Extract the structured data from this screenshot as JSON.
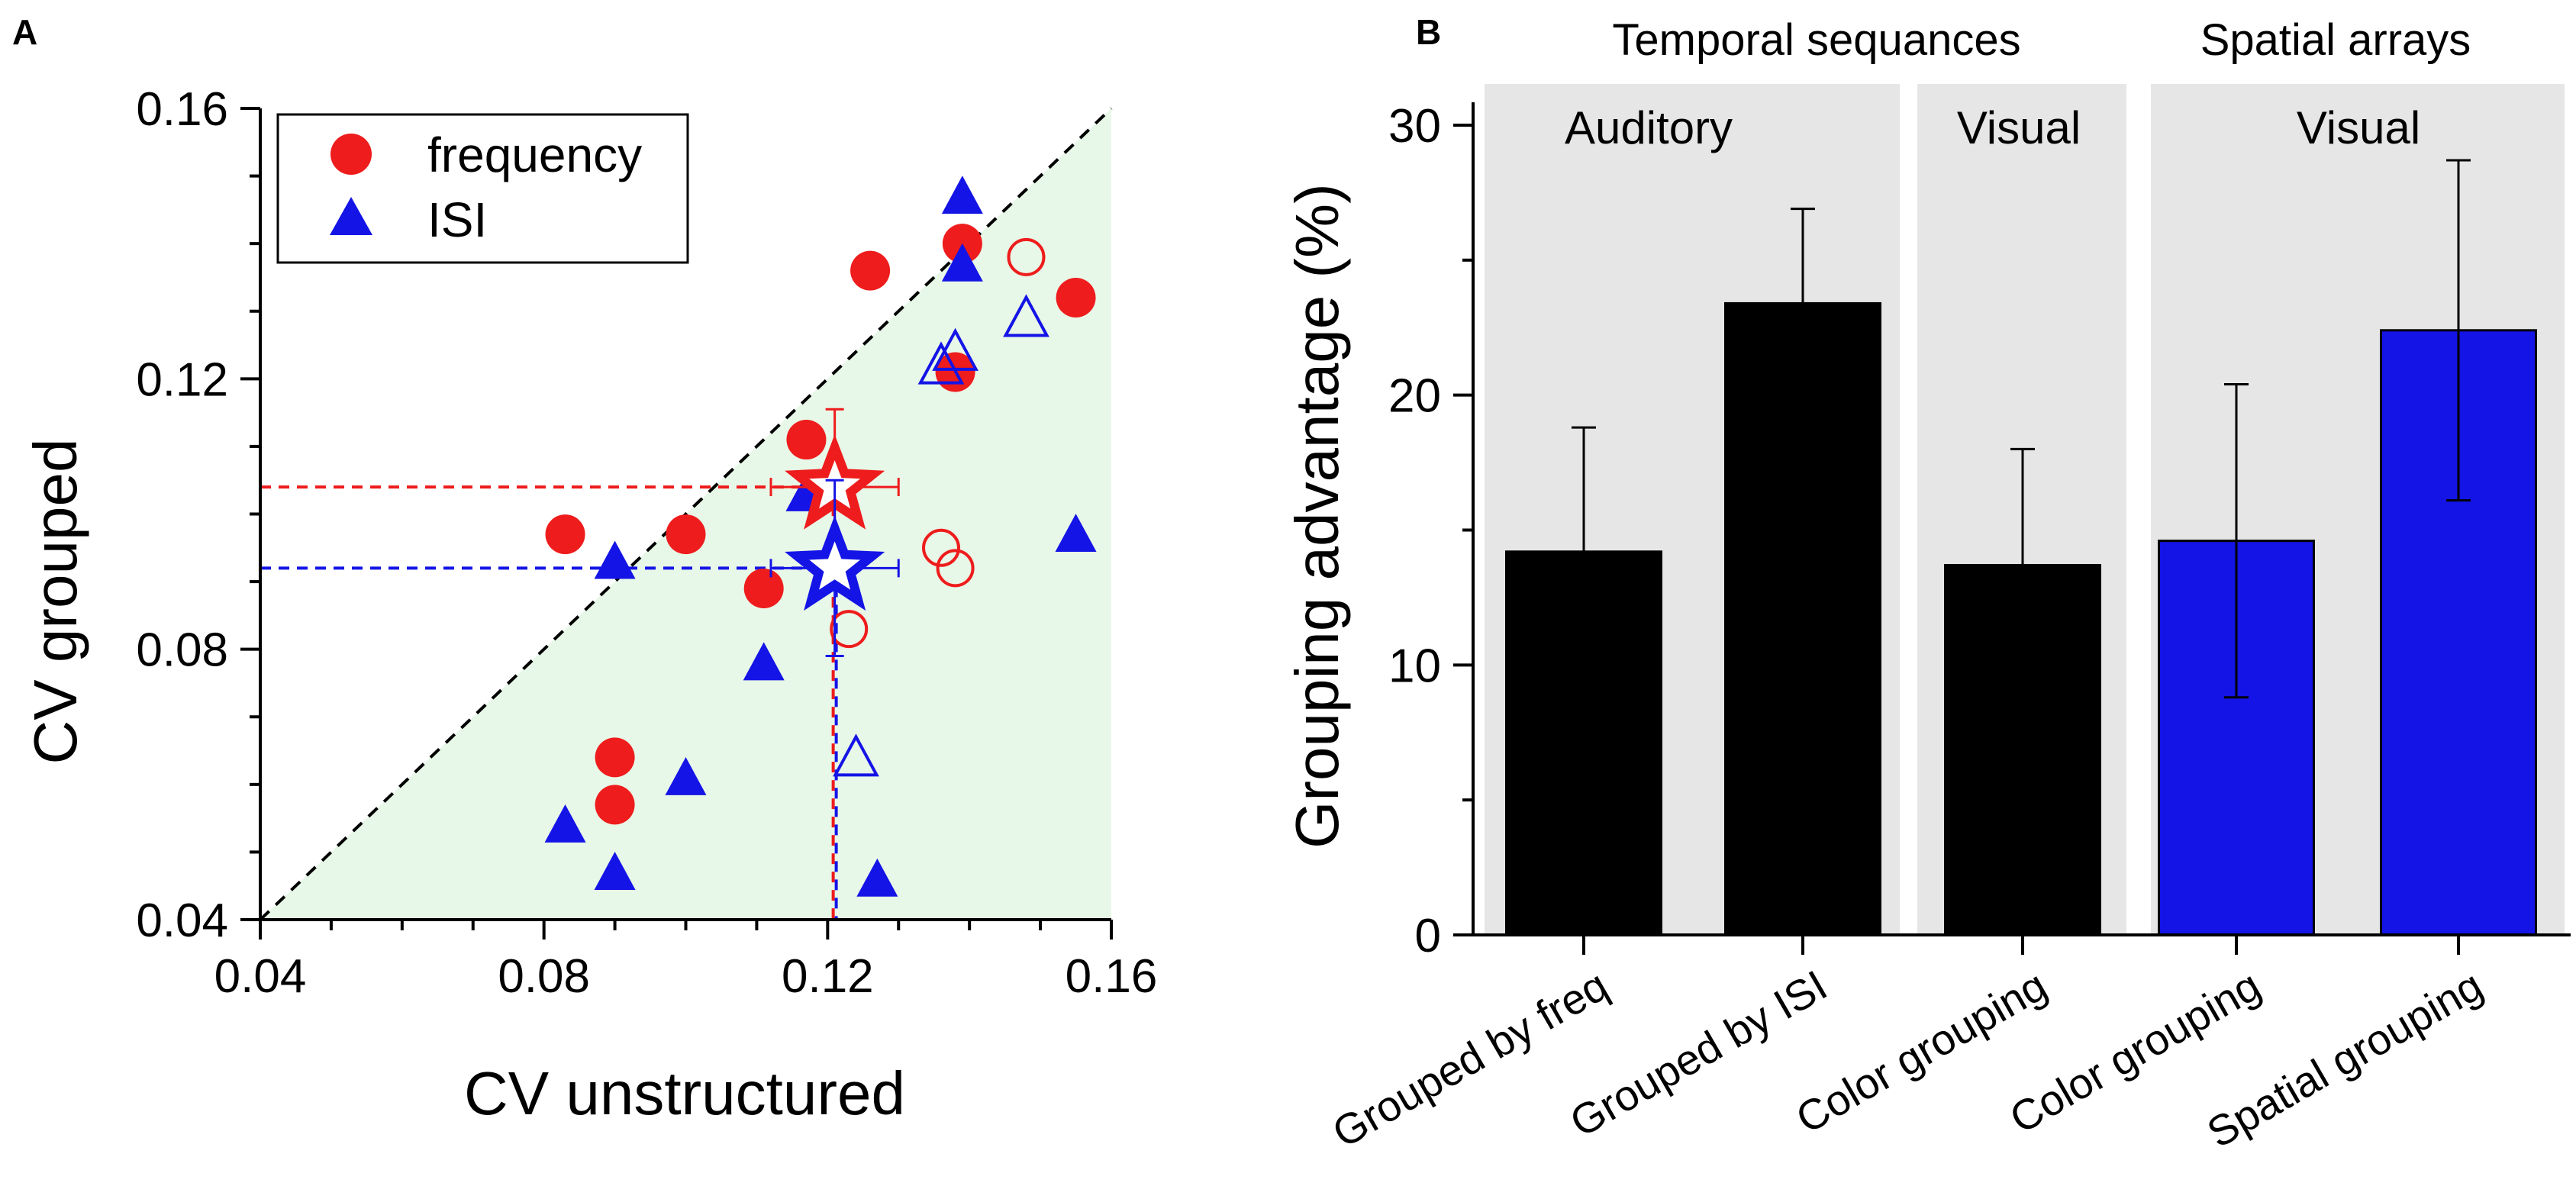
{
  "panel_a": {
    "label": "A",
    "xlabel": "CV unstructured",
    "ylabel": "CV grouped",
    "legend": [
      {
        "label": "frequency",
        "marker": "circle",
        "color": "#ee1c1c"
      },
      {
        "label": "ISI",
        "marker": "triangle",
        "color": "#1414e6"
      }
    ]
  },
  "panel_b": {
    "label": "B",
    "ylabel": "Grouping advantage (%)",
    "groups": [
      {
        "label": "Temporal sequances"
      },
      {
        "label": "Spatial arrays"
      }
    ],
    "regions": [
      {
        "label": "Auditory"
      },
      {
        "label": "Visual"
      },
      {
        "label": "Visual"
      }
    ]
  },
  "colors": {
    "red": "#ee1c1c",
    "blue": "#1414e6",
    "black": "#000000",
    "shade_green": "#e8f8e8",
    "shade_gray": "#e6e6e6"
  },
  "chart_data": [
    {
      "type": "scatter",
      "title": "",
      "xlabel": "CV unstructured",
      "ylabel": "CV grouped",
      "xlim": [
        0.04,
        0.16
      ],
      "ylim": [
        0.04,
        0.16
      ],
      "xticks": [
        "0.04",
        "0.08",
        "0.12",
        "0.16"
      ],
      "yticks": [
        "0.04",
        "0.08",
        "0.12",
        "0.16"
      ],
      "identity_line": true,
      "series": [
        {
          "name": "frequency",
          "marker": "circle",
          "filled": true,
          "color": "#ee1c1c",
          "points": [
            [
              0.083,
              0.097
            ],
            [
              0.09,
              0.064
            ],
            [
              0.09,
              0.057
            ],
            [
              0.1,
              0.097
            ],
            [
              0.111,
              0.089
            ],
            [
              0.117,
              0.111
            ],
            [
              0.126,
              0.136
            ],
            [
              0.138,
              0.121
            ],
            [
              0.139,
              0.14
            ],
            [
              0.155,
              0.132
            ]
          ]
        },
        {
          "name": "frequency (open)",
          "marker": "circle",
          "filled": false,
          "color": "#ee1c1c",
          "points": [
            [
              0.123,
              0.083
            ],
            [
              0.136,
              0.095
            ],
            [
              0.138,
              0.092
            ],
            [
              0.148,
              0.138
            ]
          ]
        },
        {
          "name": "ISI",
          "marker": "triangle",
          "filled": true,
          "color": "#1414e6",
          "points": [
            [
              0.083,
              0.054
            ],
            [
              0.09,
              0.093
            ],
            [
              0.09,
              0.047
            ],
            [
              0.1,
              0.061
            ],
            [
              0.111,
              0.078
            ],
            [
              0.117,
              0.103
            ],
            [
              0.127,
              0.046
            ],
            [
              0.139,
              0.137
            ],
            [
              0.139,
              0.147
            ],
            [
              0.155,
              0.097
            ]
          ]
        },
        {
          "name": "ISI (open)",
          "marker": "triangle",
          "filled": false,
          "color": "#1414e6",
          "points": [
            [
              0.124,
              0.064
            ],
            [
              0.136,
              0.122
            ],
            [
              0.138,
              0.124
            ],
            [
              0.148,
              0.129
            ]
          ]
        }
      ],
      "means": [
        {
          "name": "frequency mean",
          "marker": "star",
          "color": "#ee1c1c",
          "x": 0.121,
          "y": 0.104,
          "xerr": 0.009,
          "yerr": 0.0115
        },
        {
          "name": "ISI mean",
          "marker": "star",
          "color": "#1414e6",
          "x": 0.121,
          "y": 0.092,
          "xerr": 0.009,
          "yerr": 0.013
        }
      ]
    },
    {
      "type": "bar",
      "title": "",
      "xlabel": "",
      "ylabel": "Grouping advantage (%)",
      "ylim": [
        0,
        30
      ],
      "yticks": [
        "0",
        "10",
        "20",
        "30"
      ],
      "categories": [
        "Grouped by freq",
        "Grouped by ISI",
        "Color grouping",
        "Color grouping",
        "Spatial grouping"
      ],
      "values": [
        14.2,
        23.4,
        13.7,
        14.6,
        22.4
      ],
      "errors": [
        4.6,
        3.5,
        4.3,
        5.8,
        6.3
      ],
      "bar_colors": [
        "#000000",
        "#000000",
        "#000000",
        "#1414e6",
        "#1414e6"
      ],
      "groups": [
        "Temporal sequances",
        "Spatial arrays"
      ],
      "regions": [
        "Auditory",
        "Visual",
        "Visual"
      ]
    }
  ]
}
